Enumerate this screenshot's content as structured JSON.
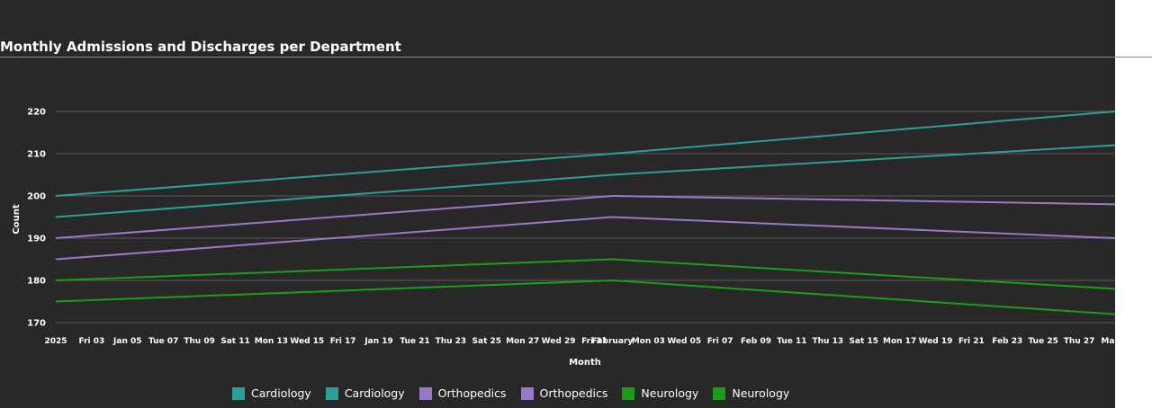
{
  "chart_data": {
    "type": "line",
    "title": "Monthly Admissions and Discharges per Department",
    "xlabel": "Month",
    "ylabel": "Count",
    "ylim": [
      170,
      220
    ],
    "yticks": [
      170,
      180,
      190,
      200,
      210,
      220
    ],
    "grid": true,
    "legend_position": "bottom",
    "x_axis_type": "date",
    "xlim": [
      "2025-01-01",
      "2025-03-01"
    ],
    "x_tick_labels": [
      {
        "date": "2025-01-01",
        "label": "2025"
      },
      {
        "date": "2025-01-03",
        "label": "Fri 03"
      },
      {
        "date": "2025-01-05",
        "label": "Jan 05"
      },
      {
        "date": "2025-01-07",
        "label": "Tue 07"
      },
      {
        "date": "2025-01-09",
        "label": "Thu 09"
      },
      {
        "date": "2025-01-11",
        "label": "Sat 11"
      },
      {
        "date": "2025-01-13",
        "label": "Mon 13"
      },
      {
        "date": "2025-01-15",
        "label": "Wed 15"
      },
      {
        "date": "2025-01-17",
        "label": "Fri 17"
      },
      {
        "date": "2025-01-19",
        "label": "Jan 19"
      },
      {
        "date": "2025-01-21",
        "label": "Tue 21"
      },
      {
        "date": "2025-01-23",
        "label": "Thu 23"
      },
      {
        "date": "2025-01-25",
        "label": "Sat 25"
      },
      {
        "date": "2025-01-27",
        "label": "Mon 27"
      },
      {
        "date": "2025-01-29",
        "label": "Wed 29"
      },
      {
        "date": "2025-01-31",
        "label": "Fri 31"
      },
      {
        "date": "2025-02-01",
        "label": "February"
      },
      {
        "date": "2025-02-03",
        "label": "Mon 03"
      },
      {
        "date": "2025-02-05",
        "label": "Wed 05"
      },
      {
        "date": "2025-02-07",
        "label": "Fri 07"
      },
      {
        "date": "2025-02-09",
        "label": "Feb 09"
      },
      {
        "date": "2025-02-11",
        "label": "Tue 11"
      },
      {
        "date": "2025-02-13",
        "label": "Thu 13"
      },
      {
        "date": "2025-02-15",
        "label": "Sat 15"
      },
      {
        "date": "2025-02-17",
        "label": "Mon 17"
      },
      {
        "date": "2025-02-19",
        "label": "Wed 19"
      },
      {
        "date": "2025-02-21",
        "label": "Fri 21"
      },
      {
        "date": "2025-02-23",
        "label": "Feb 23"
      },
      {
        "date": "2025-02-25",
        "label": "Tue 25"
      },
      {
        "date": "2025-02-27",
        "label": "Thu 27"
      },
      {
        "date": "2025-03-01",
        "label": "March"
      }
    ],
    "x": [
      "2025-01-01",
      "2025-02-01",
      "2025-03-01"
    ],
    "series": [
      {
        "name": "Cardiology",
        "color": "#2aa198",
        "values": [
          200,
          210,
          220
        ]
      },
      {
        "name": "Cardiology",
        "color": "#2aa198",
        "values": [
          195,
          205,
          212
        ]
      },
      {
        "name": "Orthopedics",
        "color": "#9b79c9",
        "values": [
          190,
          200,
          198
        ]
      },
      {
        "name": "Orthopedics",
        "color": "#9b79c9",
        "values": [
          185,
          195,
          190
        ]
      },
      {
        "name": "Neurology",
        "color": "#1a9e1a",
        "values": [
          180,
          185,
          178
        ]
      },
      {
        "name": "Neurology",
        "color": "#1a9e1a",
        "values": [
          175,
          180,
          172
        ]
      }
    ]
  }
}
